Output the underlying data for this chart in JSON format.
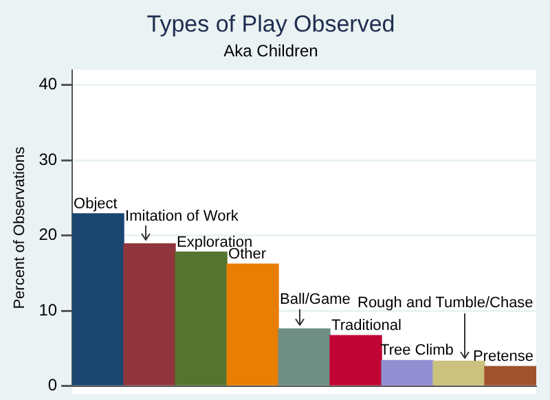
{
  "chart_data": {
    "type": "bar",
    "title": "Types of Play Observed",
    "subtitle": "Aka Children",
    "ylabel": "Percent of Observations",
    "categories": [
      null,
      null,
      null,
      null,
      null,
      null,
      null,
      null,
      null
    ],
    "values": [
      22.9,
      18.9,
      17.8,
      16.2,
      7.6,
      6.7,
      3.4,
      3.3,
      2.6
    ],
    "colors": [
      "#1a4670",
      "#90353b",
      "#55752f",
      "#e87e04",
      "#6f8e84",
      "#c10534",
      "#938dd2",
      "#cac27e",
      "#a0522d"
    ],
    "annotations": [
      "Object",
      "Imitation of Work",
      "Exploration",
      "Other",
      "Ball/Game",
      "Traditional",
      "Tree Climb",
      "Rough and Tumble/Chase",
      "Pretense"
    ],
    "ylim": [
      0,
      42
    ],
    "yticks": [
      0,
      10,
      20,
      30,
      40
    ],
    "grid": "y",
    "tick_labels": "y",
    "legend": false
  }
}
